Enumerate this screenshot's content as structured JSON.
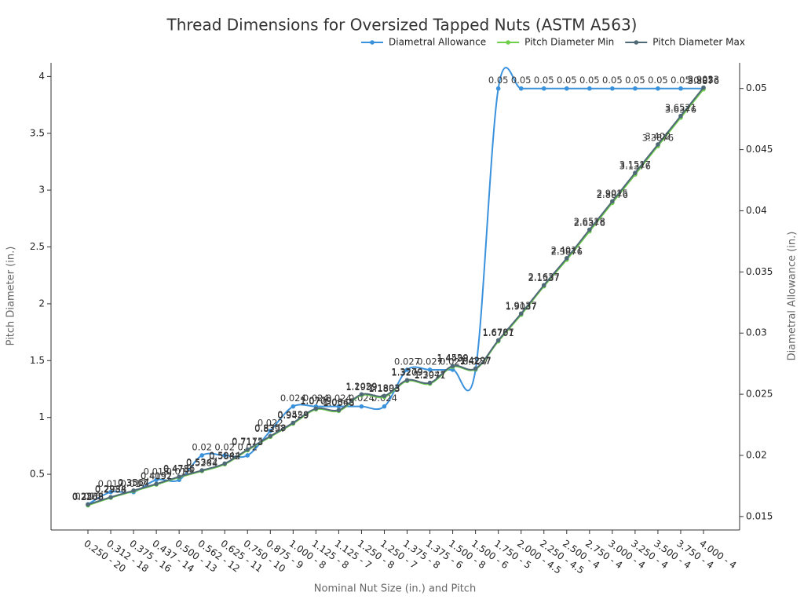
{
  "chart_data": {
    "type": "line",
    "title": "Thread Dimensions for Oversized Tapped Nuts (ASTM A563)",
    "x_label": "Nominal Nut Size (in.) and Pitch",
    "y_label": "Pitch Diameter (in.)",
    "y2_label": "Diametral Allowance (in.)",
    "categories": [
      "0.250 - 20",
      "0.312 - 18",
      "0.375 - 16",
      "0.437 - 14",
      "0.500 - 13",
      "0.562 - 12",
      "0.625 - 11",
      "0.750 - 10",
      "0.875 - 9",
      "1.000 - 8",
      "1.125 - 8",
      "1.125 - 7",
      "1.250 - 8",
      "1.250 - 7",
      "1.375 - 8",
      "1.375 - 6",
      "1.500 - 8",
      "1.500 - 6",
      "1.750 - 5",
      "2.000 - 4.5",
      "2.250 - 4.5",
      "2.500 - 4",
      "2.750 - 4",
      "3.000 - 4",
      "3.250 - 4",
      "3.500 - 4",
      "3.750 - 4",
      "4.000 - 4"
    ],
    "series": [
      {
        "name": "Diametral Allowance",
        "color": "#3b92dc",
        "axis": "y2",
        "values": [
          0.016,
          0.017,
          0.017,
          0.018,
          0.018,
          0.02,
          0.02,
          0.02,
          0.022,
          0.024,
          0.024,
          0.024,
          0.024,
          0.024,
          0.027,
          0.027,
          0.027,
          0.027,
          0.05,
          0.05,
          0.05,
          0.05,
          0.05,
          0.05,
          0.05,
          0.05,
          0.05,
          0.05
        ]
      },
      {
        "name": "Pitch Diameter Min",
        "color": "#6fcf4b",
        "values": [
          0.2268,
          0.2938,
          0.3514,
          0.4097,
          0.4731,
          0.5284,
          0.5882,
          0.7113,
          0.8297,
          0.9459,
          1.0709,
          1.0568,
          1.1959,
          1.1803,
          1.3209,
          1.2971,
          1.4458,
          1.4237,
          1.6701,
          1.9037,
          2.1537,
          2.3876,
          2.6376,
          2.8876,
          3.1376,
          3.3876,
          3.6376,
          3.8876
        ]
      },
      {
        "name": "Pitch Diameter Max",
        "color": "#4f6977",
        "values": [
          0.2338,
          0.2984,
          0.3567,
          0.4152,
          0.4786,
          0.5342,
          0.5944,
          0.7175,
          0.8358,
          0.9529,
          1.0779,
          1.0645,
          1.2029,
          1.1893,
          1.3279,
          1.3047,
          1.4529,
          1.4297,
          1.6787,
          1.9137,
          2.1637,
          2.4011,
          2.6518,
          2.9015,
          3.1517,
          3.402,
          3.6521,
          3.9023
        ]
      }
    ],
    "ylim": [
      0.01,
      4.12
    ],
    "yticks": [
      0.5,
      1,
      1.5,
      2,
      2.5,
      3,
      3.5,
      4
    ],
    "y2lim": [
      0.0139,
      0.0521
    ],
    "y2ticks": [
      0.015,
      0.02,
      0.025,
      0.03,
      0.035,
      0.04,
      0.045,
      0.05
    ],
    "grid": false,
    "legend": "top-right"
  }
}
